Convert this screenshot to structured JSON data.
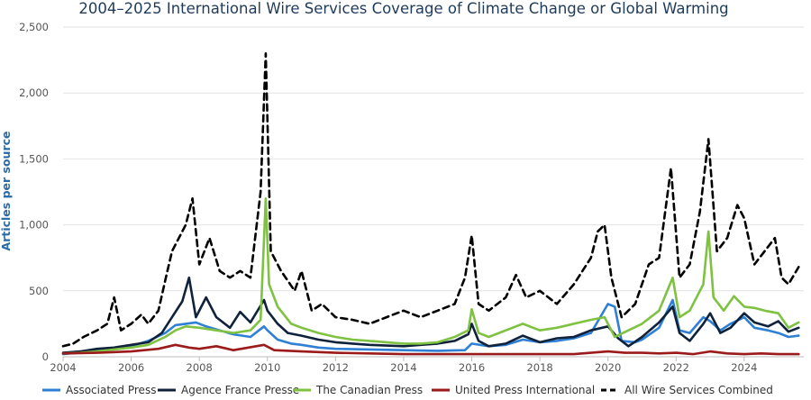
{
  "chart_data": {
    "type": "line",
    "title": "2004–2025 International Wire Services Coverage of Climate Change or Global Warming",
    "xlabel": "",
    "ylabel": "Articles per source",
    "xlim": [
      2004,
      2025.75
    ],
    "ylim": [
      0,
      2500
    ],
    "x_ticks": [
      "2004",
      "2006",
      "2008",
      "2010",
      "2012",
      "2014",
      "2016",
      "2018",
      "2020",
      "2022",
      "2024"
    ],
    "y_ticks": [
      "0",
      "500",
      "1,000",
      "1,500",
      "2,000",
      "2,500"
    ],
    "grid": true,
    "legend_position": "bottom",
    "series": [
      {
        "name": "Associated Press",
        "color": "#2f80d4",
        "dash": "solid",
        "points": [
          [
            2004.0,
            20
          ],
          [
            2005.0,
            45
          ],
          [
            2006.0,
            80
          ],
          [
            2006.5,
            120
          ],
          [
            2007.0,
            180
          ],
          [
            2007.3,
            240
          ],
          [
            2007.6,
            250
          ],
          [
            2007.9,
            260
          ],
          [
            2008.2,
            230
          ],
          [
            2008.6,
            200
          ],
          [
            2009.0,
            170
          ],
          [
            2009.5,
            150
          ],
          [
            2009.9,
            230
          ],
          [
            2010.0,
            200
          ],
          [
            2010.3,
            130
          ],
          [
            2010.7,
            100
          ],
          [
            2011.0,
            90
          ],
          [
            2011.5,
            70
          ],
          [
            2012.0,
            60
          ],
          [
            2013.0,
            55
          ],
          [
            2014.0,
            50
          ],
          [
            2015.0,
            45
          ],
          [
            2015.8,
            50
          ],
          [
            2016.0,
            100
          ],
          [
            2016.5,
            80
          ],
          [
            2017.0,
            90
          ],
          [
            2017.5,
            130
          ],
          [
            2018.0,
            110
          ],
          [
            2018.5,
            120
          ],
          [
            2019.0,
            140
          ],
          [
            2019.5,
            180
          ],
          [
            2020.0,
            400
          ],
          [
            2020.2,
            380
          ],
          [
            2020.4,
            120
          ],
          [
            2020.8,
            110
          ],
          [
            2021.0,
            130
          ],
          [
            2021.5,
            220
          ],
          [
            2021.9,
            430
          ],
          [
            2022.1,
            200
          ],
          [
            2022.4,
            180
          ],
          [
            2022.8,
            300
          ],
          [
            2023.0,
            270
          ],
          [
            2023.3,
            200
          ],
          [
            2023.6,
            250
          ],
          [
            2024.0,
            300
          ],
          [
            2024.3,
            220
          ],
          [
            2024.7,
            200
          ],
          [
            2025.0,
            180
          ],
          [
            2025.3,
            150
          ],
          [
            2025.6,
            160
          ]
        ]
      },
      {
        "name": "Agence France Presse",
        "color": "#10223b",
        "dash": "solid",
        "points": [
          [
            2004.0,
            30
          ],
          [
            2004.5,
            40
          ],
          [
            2005.0,
            60
          ],
          [
            2005.5,
            70
          ],
          [
            2006.0,
            90
          ],
          [
            2006.5,
            110
          ],
          [
            2006.9,
            180
          ],
          [
            2007.2,
            300
          ],
          [
            2007.5,
            420
          ],
          [
            2007.7,
            600
          ],
          [
            2007.9,
            300
          ],
          [
            2008.2,
            450
          ],
          [
            2008.5,
            300
          ],
          [
            2008.9,
            220
          ],
          [
            2009.2,
            340
          ],
          [
            2009.5,
            260
          ],
          [
            2009.9,
            430
          ],
          [
            2010.0,
            350
          ],
          [
            2010.3,
            250
          ],
          [
            2010.6,
            180
          ],
          [
            2011.0,
            160
          ],
          [
            2011.5,
            130
          ],
          [
            2012.0,
            110
          ],
          [
            2012.5,
            100
          ],
          [
            2013.0,
            90
          ],
          [
            2013.5,
            85
          ],
          [
            2014.0,
            80
          ],
          [
            2014.5,
            90
          ],
          [
            2015.0,
            100
          ],
          [
            2015.5,
            120
          ],
          [
            2015.9,
            170
          ],
          [
            2016.0,
            250
          ],
          [
            2016.2,
            120
          ],
          [
            2016.5,
            80
          ],
          [
            2017.0,
            100
          ],
          [
            2017.5,
            160
          ],
          [
            2018.0,
            110
          ],
          [
            2018.5,
            140
          ],
          [
            2019.0,
            150
          ],
          [
            2019.5,
            200
          ],
          [
            2020.0,
            230
          ],
          [
            2020.3,
            140
          ],
          [
            2020.6,
            80
          ],
          [
            2021.0,
            150
          ],
          [
            2021.5,
            260
          ],
          [
            2021.9,
            380
          ],
          [
            2022.1,
            180
          ],
          [
            2022.4,
            120
          ],
          [
            2022.8,
            250
          ],
          [
            2023.0,
            330
          ],
          [
            2023.3,
            180
          ],
          [
            2023.6,
            220
          ],
          [
            2024.0,
            330
          ],
          [
            2024.3,
            260
          ],
          [
            2024.7,
            230
          ],
          [
            2025.0,
            270
          ],
          [
            2025.3,
            190
          ],
          [
            2025.6,
            220
          ]
        ]
      },
      {
        "name": "The Canadian Press",
        "color": "#7fc241",
        "dash": "solid",
        "points": [
          [
            2004.0,
            25
          ],
          [
            2004.5,
            30
          ],
          [
            2005.0,
            40
          ],
          [
            2005.5,
            55
          ],
          [
            2006.0,
            70
          ],
          [
            2006.5,
            90
          ],
          [
            2007.0,
            150
          ],
          [
            2007.3,
            200
          ],
          [
            2007.6,
            230
          ],
          [
            2008.0,
            220
          ],
          [
            2008.5,
            200
          ],
          [
            2009.0,
            180
          ],
          [
            2009.5,
            200
          ],
          [
            2009.8,
            280
          ],
          [
            2009.95,
            1200
          ],
          [
            2010.05,
            550
          ],
          [
            2010.3,
            380
          ],
          [
            2010.7,
            250
          ],
          [
            2011.0,
            220
          ],
          [
            2011.5,
            180
          ],
          [
            2012.0,
            150
          ],
          [
            2012.5,
            130
          ],
          [
            2013.0,
            120
          ],
          [
            2013.5,
            110
          ],
          [
            2014.0,
            100
          ],
          [
            2014.5,
            100
          ],
          [
            2015.0,
            110
          ],
          [
            2015.5,
            150
          ],
          [
            2015.9,
            200
          ],
          [
            2016.0,
            360
          ],
          [
            2016.2,
            180
          ],
          [
            2016.5,
            150
          ],
          [
            2017.0,
            200
          ],
          [
            2017.5,
            250
          ],
          [
            2018.0,
            200
          ],
          [
            2018.5,
            220
          ],
          [
            2019.0,
            250
          ],
          [
            2019.5,
            280
          ],
          [
            2019.9,
            300
          ],
          [
            2020.2,
            150
          ],
          [
            2020.6,
            200
          ],
          [
            2021.0,
            250
          ],
          [
            2021.5,
            350
          ],
          [
            2021.9,
            600
          ],
          [
            2022.1,
            300
          ],
          [
            2022.4,
            350
          ],
          [
            2022.8,
            550
          ],
          [
            2022.95,
            950
          ],
          [
            2023.1,
            450
          ],
          [
            2023.4,
            350
          ],
          [
            2023.7,
            460
          ],
          [
            2024.0,
            380
          ],
          [
            2024.3,
            370
          ],
          [
            2024.6,
            350
          ],
          [
            2025.0,
            330
          ],
          [
            2025.3,
            220
          ],
          [
            2025.6,
            260
          ]
        ]
      },
      {
        "name": "United Press International",
        "color": "#9b1a1a",
        "dash": "solid",
        "points": [
          [
            2004.0,
            25
          ],
          [
            2005.0,
            30
          ],
          [
            2006.0,
            40
          ],
          [
            2006.8,
            60
          ],
          [
            2007.3,
            90
          ],
          [
            2007.7,
            70
          ],
          [
            2008.0,
            60
          ],
          [
            2008.5,
            80
          ],
          [
            2009.0,
            50
          ],
          [
            2009.9,
            90
          ],
          [
            2010.2,
            50
          ],
          [
            2011.0,
            40
          ],
          [
            2012.0,
            30
          ],
          [
            2013.0,
            25
          ],
          [
            2014.0,
            20
          ],
          [
            2015.0,
            20
          ],
          [
            2016.0,
            20
          ],
          [
            2017.0,
            20
          ],
          [
            2018.0,
            20
          ],
          [
            2019.0,
            20
          ],
          [
            2020.0,
            40
          ],
          [
            2020.5,
            30
          ],
          [
            2021.0,
            30
          ],
          [
            2021.5,
            25
          ],
          [
            2022.0,
            30
          ],
          [
            2022.5,
            20
          ],
          [
            2023.0,
            40
          ],
          [
            2023.5,
            25
          ],
          [
            2024.0,
            20
          ],
          [
            2024.5,
            25
          ],
          [
            2025.0,
            20
          ],
          [
            2025.6,
            20
          ]
        ]
      },
      {
        "name": "All Wire Services Combined",
        "color": "#000000",
        "dash": "dashed",
        "points": [
          [
            2004.0,
            80
          ],
          [
            2004.3,
            100
          ],
          [
            2004.6,
            150
          ],
          [
            2005.0,
            200
          ],
          [
            2005.3,
            250
          ],
          [
            2005.5,
            450
          ],
          [
            2005.7,
            200
          ],
          [
            2006.0,
            250
          ],
          [
            2006.3,
            320
          ],
          [
            2006.5,
            250
          ],
          [
            2006.8,
            350
          ],
          [
            2007.0,
            580
          ],
          [
            2007.2,
            800
          ],
          [
            2007.4,
            900
          ],
          [
            2007.6,
            1000
          ],
          [
            2007.8,
            1200
          ],
          [
            2008.0,
            700
          ],
          [
            2008.3,
            900
          ],
          [
            2008.6,
            650
          ],
          [
            2008.9,
            600
          ],
          [
            2009.2,
            650
          ],
          [
            2009.5,
            600
          ],
          [
            2009.8,
            1250
          ],
          [
            2009.95,
            2300
          ],
          [
            2010.1,
            800
          ],
          [
            2010.4,
            650
          ],
          [
            2010.8,
            500
          ],
          [
            2011.0,
            650
          ],
          [
            2011.3,
            350
          ],
          [
            2011.6,
            400
          ],
          [
            2012.0,
            300
          ],
          [
            2012.5,
            280
          ],
          [
            2013.0,
            250
          ],
          [
            2013.5,
            300
          ],
          [
            2014.0,
            350
          ],
          [
            2014.5,
            300
          ],
          [
            2015.0,
            350
          ],
          [
            2015.5,
            400
          ],
          [
            2015.8,
            600
          ],
          [
            2016.0,
            920
          ],
          [
            2016.2,
            400
          ],
          [
            2016.5,
            350
          ],
          [
            2017.0,
            450
          ],
          [
            2017.3,
            620
          ],
          [
            2017.6,
            450
          ],
          [
            2018.0,
            500
          ],
          [
            2018.5,
            400
          ],
          [
            2019.0,
            550
          ],
          [
            2019.5,
            750
          ],
          [
            2019.7,
            950
          ],
          [
            2019.9,
            1000
          ],
          [
            2020.1,
            600
          ],
          [
            2020.4,
            300
          ],
          [
            2020.8,
            400
          ],
          [
            2021.2,
            700
          ],
          [
            2021.5,
            750
          ],
          [
            2021.85,
            1430
          ],
          [
            2022.1,
            600
          ],
          [
            2022.4,
            700
          ],
          [
            2022.7,
            1100
          ],
          [
            2022.95,
            1650
          ],
          [
            2023.2,
            800
          ],
          [
            2023.5,
            900
          ],
          [
            2023.8,
            1150
          ],
          [
            2024.0,
            1050
          ],
          [
            2024.3,
            700
          ],
          [
            2024.6,
            800
          ],
          [
            2024.9,
            900
          ],
          [
            2025.1,
            600
          ],
          [
            2025.3,
            550
          ],
          [
            2025.6,
            680
          ]
        ]
      }
    ]
  }
}
